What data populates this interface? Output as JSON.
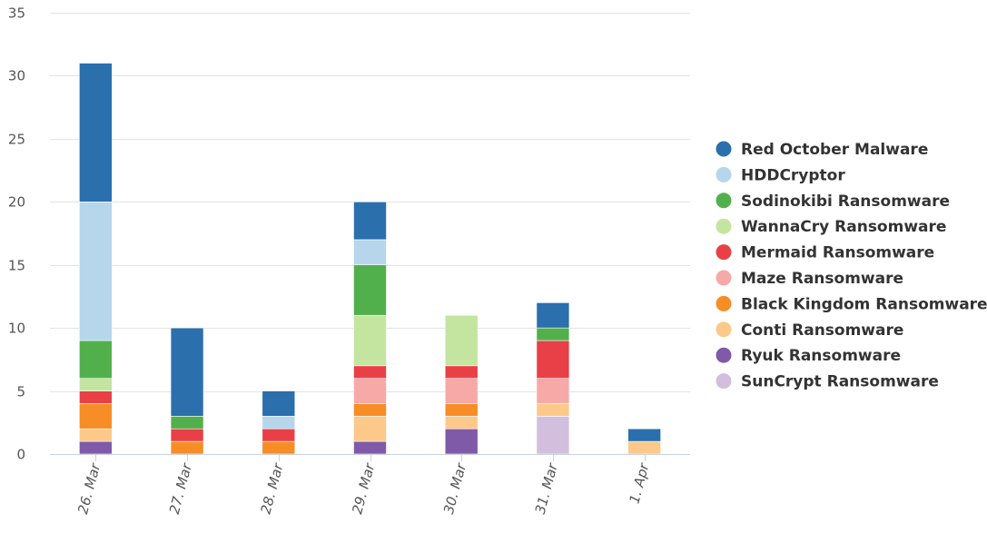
{
  "chart_data": {
    "type": "bar",
    "stacked": true,
    "title": "",
    "xlabel": "",
    "ylabel": "",
    "ylim": [
      0,
      35
    ],
    "yticks": [
      0,
      5,
      10,
      15,
      20,
      25,
      30,
      35
    ],
    "grid": true,
    "legend_position": "right",
    "categories": [
      "26. Mar",
      "27. Mar",
      "28. Mar",
      "29. Mar",
      "30. Mar",
      "31. Mar",
      "1. Apr"
    ],
    "series": [
      {
        "name": "Red October Malware",
        "color": "#2b6fad",
        "values": [
          11,
          7,
          2,
          3,
          0,
          2,
          1
        ]
      },
      {
        "name": "HDDCryptor",
        "color": "#b6d6ec",
        "values": [
          11,
          0,
          1,
          2,
          0,
          0,
          0
        ]
      },
      {
        "name": "Sodinokibi Ransomware",
        "color": "#52b04c",
        "values": [
          3,
          1,
          0,
          4,
          0,
          1,
          0
        ]
      },
      {
        "name": "WannaCry Ransomware",
        "color": "#c3e5a0",
        "values": [
          1,
          0,
          0,
          4,
          4,
          0,
          0
        ]
      },
      {
        "name": "Mermaid Ransomware",
        "color": "#e84046",
        "values": [
          1,
          1,
          1,
          1,
          1,
          3,
          0
        ]
      },
      {
        "name": "Maze Ransomware",
        "color": "#f7a9a8",
        "values": [
          0,
          0,
          0,
          2,
          2,
          2,
          0
        ]
      },
      {
        "name": "Black Kingdom Ransomware",
        "color": "#f68d27",
        "values": [
          2,
          1,
          1,
          1,
          1,
          0,
          0
        ]
      },
      {
        "name": "Conti Ransomware",
        "color": "#fcc98a",
        "values": [
          1,
          0,
          0,
          2,
          1,
          1,
          1
        ]
      },
      {
        "name": "Ryuk Ransomware",
        "color": "#7f5aa9",
        "values": [
          1,
          0,
          0,
          1,
          2,
          0,
          0
        ]
      },
      {
        "name": "SunCrypt Ransomware",
        "color": "#d2bfdd",
        "values": [
          0,
          0,
          0,
          0,
          0,
          3,
          0
        ]
      }
    ]
  }
}
